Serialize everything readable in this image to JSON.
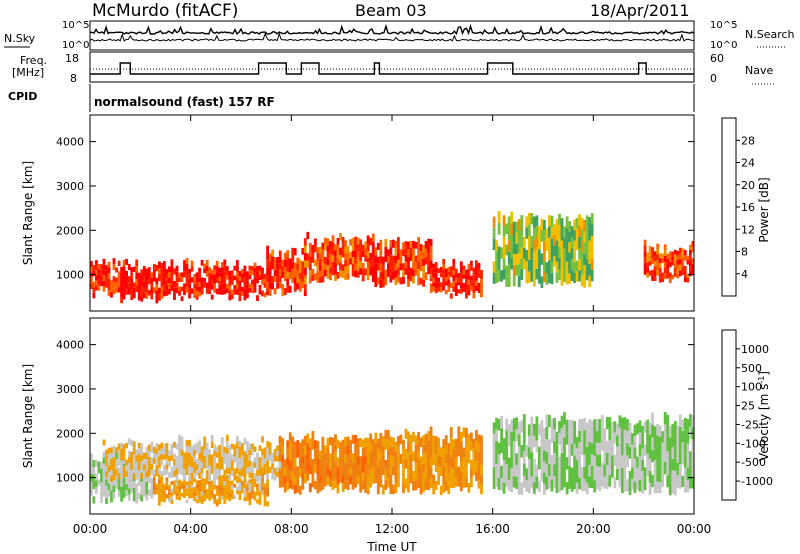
{
  "header": {
    "station": "McMurdo (fitACF)",
    "beam": "Beam 03",
    "date": "18/Apr/2011"
  },
  "status_panel": {
    "nsky_label": "N.Sky",
    "nsearch_label": "N.Search",
    "freq_label_1": "Freq.",
    "freq_label_2": "[MHz]",
    "nave_label": "Nave",
    "cpid_label": "CPID",
    "cpid_text": "normalsound (fast) 157 RF",
    "left_ticks_top": [
      "10^5",
      "10^0"
    ],
    "right_ticks_top": [
      "10^5",
      "10^0"
    ],
    "left_ticks_freq": [
      "18",
      "8"
    ],
    "right_ticks_nave": [
      "60",
      "0"
    ]
  },
  "x_axis": {
    "label": "Time UT",
    "ticks": [
      "00:00",
      "04:00",
      "08:00",
      "12:00",
      "16:00",
      "20:00",
      "00:00"
    ]
  },
  "power_colorbar": {
    "label": "Power [dB]",
    "ticks": [
      "28",
      "24",
      "20",
      "16",
      "12",
      "8",
      "4"
    ],
    "colors": [
      "#0000ff",
      "#1e50c8",
      "#2c7a44",
      "#3fa060",
      "#78c040",
      "#f0c000",
      "#f09000",
      "#ff6000",
      "#ff2000",
      "#ff0000"
    ]
  },
  "velocity_colorbar": {
    "label": "Velocity [m s",
    "label_sup": "-1",
    "label_close": "]",
    "ticks": [
      "1000",
      "500",
      "100",
      "25",
      "-25",
      "-100",
      "-500",
      "-1000"
    ],
    "colors": [
      "#1e3cc8",
      "#2c7a44",
      "#3fa060",
      "#60c040",
      "#c8c8c8",
      "#f0a000",
      "#f08010",
      "#ff6000",
      "#ff3000",
      "#ff0000"
    ]
  },
  "chart_data": [
    {
      "type": "heatmap",
      "title": "Power",
      "xlabel": "Time UT",
      "ylabel": "Slant Range [km]",
      "xlim": [
        "00:00",
        "24:00"
      ],
      "ylim": [
        180,
        4600
      ],
      "y_ticks": [
        1000,
        2000,
        3000,
        4000
      ],
      "colorbar": "Power [dB]",
      "color_scale": [
        0,
        30
      ],
      "regions": [
        {
          "t_start": 0.0,
          "t_end": 1.2,
          "r_low": 550,
          "r_high": 1300,
          "value": 26
        },
        {
          "t_start": 1.2,
          "t_end": 3.5,
          "r_low": 450,
          "r_high": 1250,
          "value": 28
        },
        {
          "t_start": 3.5,
          "t_end": 7.0,
          "r_low": 500,
          "r_high": 1200,
          "value": 27
        },
        {
          "t_start": 7.0,
          "t_end": 8.5,
          "r_low": 600,
          "r_high": 1500,
          "value": 25
        },
        {
          "t_start": 8.5,
          "t_end": 11.0,
          "r_low": 900,
          "r_high": 1800,
          "value": 24
        },
        {
          "t_start": 11.0,
          "t_end": 13.5,
          "r_low": 800,
          "r_high": 1800,
          "value": 25
        },
        {
          "t_start": 13.5,
          "t_end": 15.5,
          "r_low": 550,
          "r_high": 1200,
          "value": 26
        },
        {
          "t_start": 16.0,
          "t_end": 20.0,
          "r_low": 800,
          "r_high": 2300,
          "value": 14
        },
        {
          "t_start": 22.0,
          "t_end": 24.0,
          "r_low": 900,
          "r_high": 1600,
          "value": 24
        }
      ]
    },
    {
      "type": "heatmap",
      "title": "Velocity",
      "xlabel": "Time UT",
      "ylabel": "Slant Range [km]",
      "xlim": [
        "00:00",
        "24:00"
      ],
      "ylim": [
        180,
        4600
      ],
      "y_ticks": [
        1000,
        2000,
        3000,
        4000
      ],
      "colorbar": "Velocity [m s-1]",
      "color_scale": [
        -1000,
        1000
      ],
      "regions": [
        {
          "t_start": 0.0,
          "t_end": 2.5,
          "r_low": 500,
          "r_high": 1400,
          "value": -150
        },
        {
          "t_start": 2.5,
          "t_end": 7.0,
          "r_low": 450,
          "r_high": 1000,
          "value": 120
        },
        {
          "t_start": 0.5,
          "t_end": 7.5,
          "r_low": 1000,
          "r_high": 1800,
          "value": 0
        },
        {
          "t_start": 7.5,
          "t_end": 11.0,
          "r_low": 700,
          "r_high": 1900,
          "value": 300
        },
        {
          "t_start": 11.0,
          "t_end": 15.5,
          "r_low": 700,
          "r_high": 2000,
          "value": 200
        },
        {
          "t_start": 16.0,
          "t_end": 24.0,
          "r_low": 700,
          "r_high": 2300,
          "value": -200
        }
      ]
    }
  ]
}
